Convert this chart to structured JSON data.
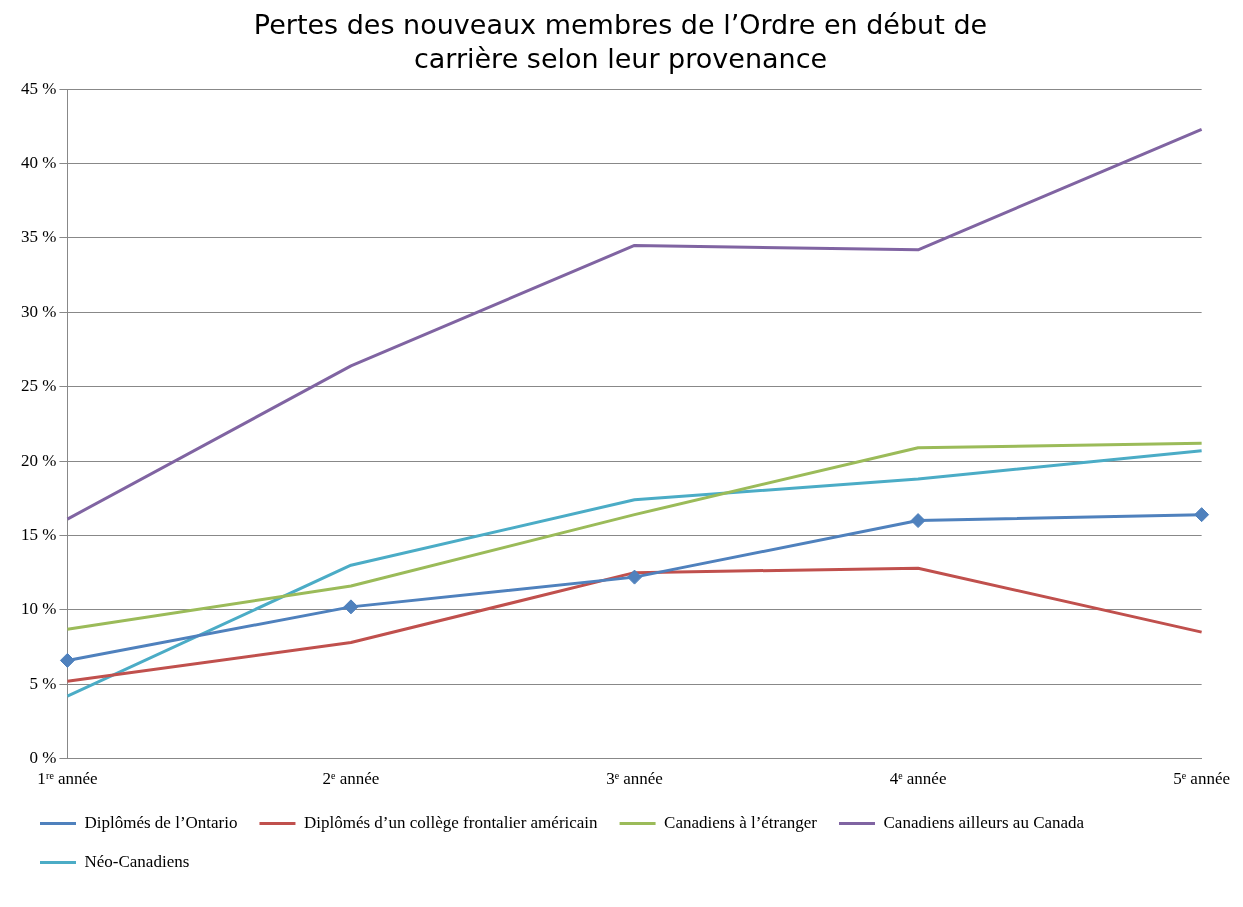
{
  "chart_data": {
    "type": "line",
    "title": "Pertes des nouveaux membres de l’Ordre en début de carrière selon leur provenance",
    "categories": [
      "1ʳᵉ année",
      "2ᵉ année",
      "3ᵉ année",
      "4ᵉ année",
      "5ᵉ année"
    ],
    "series": [
      {
        "name": "Diplômés de l’Ontario",
        "color": "#4f81bd",
        "marker": "diamond",
        "values": [
          6.6,
          10.2,
          12.2,
          16.0,
          16.4
        ]
      },
      {
        "name": "Diplômés d’un collège frontalier américain",
        "color": "#c0504d",
        "marker": "none",
        "values": [
          5.2,
          7.8,
          12.5,
          12.8,
          8.5
        ]
      },
      {
        "name": "Canadiens à l’étranger",
        "color": "#9bbb59",
        "marker": "none",
        "values": [
          8.7,
          11.6,
          16.4,
          20.9,
          21.2
        ]
      },
      {
        "name": "Canadiens ailleurs au Canada",
        "color": "#8064a2",
        "marker": "none",
        "values": [
          16.1,
          26.4,
          34.5,
          34.2,
          42.3
        ]
      },
      {
        "name": "Néo-Canadiens",
        "color": "#4bacc6",
        "marker": "none",
        "values": [
          4.2,
          13.0,
          17.4,
          18.8,
          20.7
        ]
      }
    ],
    "ylim": [
      0,
      45
    ],
    "yticks": [
      {
        "value": 0,
        "label": "0 %"
      },
      {
        "value": 5,
        "label": "5 %"
      },
      {
        "value": 10,
        "label": "10 %"
      },
      {
        "value": 15,
        "label": "15 %"
      },
      {
        "value": 20,
        "label": "20 %"
      },
      {
        "value": 25,
        "label": "25 %"
      },
      {
        "value": 30,
        "label": "30 %"
      },
      {
        "value": 35,
        "label": "35 %"
      },
      {
        "value": 40,
        "label": "40 %"
      },
      {
        "value": 45,
        "label": "45 %"
      }
    ],
    "grid": "y",
    "legend": "bottom",
    "line_style": "solid"
  }
}
